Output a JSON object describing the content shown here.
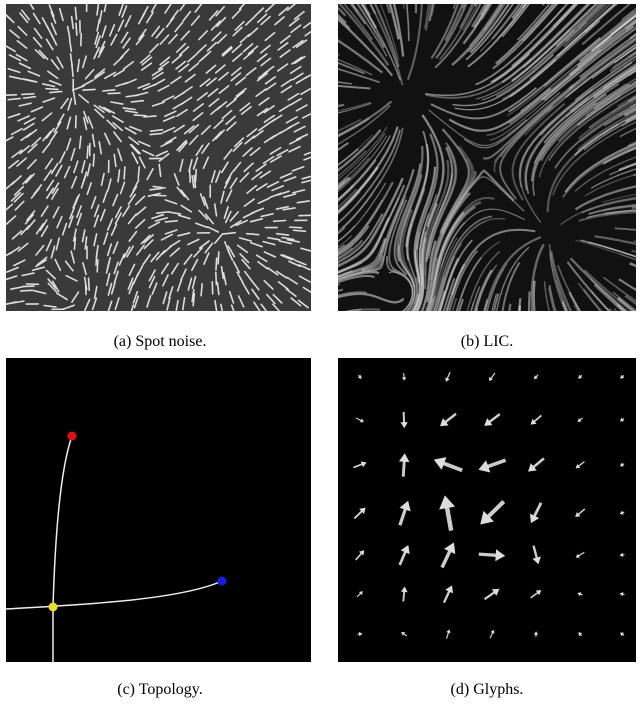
{
  "figures": [
    {
      "caption": "(a) Spot noise."
    },
    {
      "caption": "(b) LIC."
    },
    {
      "caption": "(c) Topology."
    },
    {
      "caption": "(d) Glyphs."
    }
  ]
}
